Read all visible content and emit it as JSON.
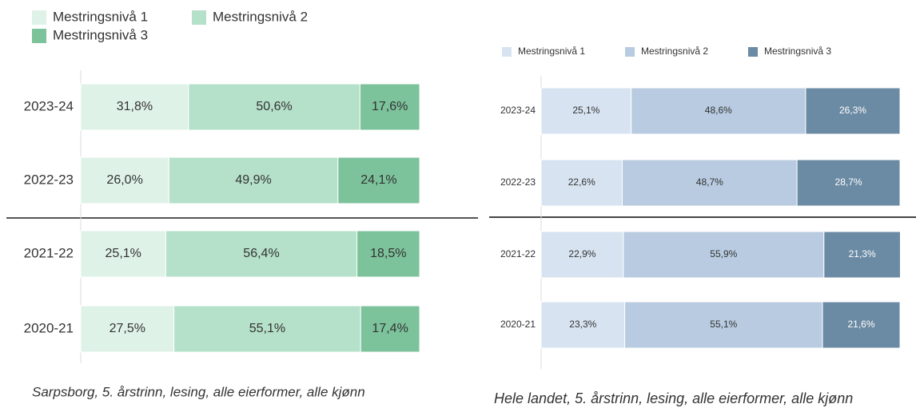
{
  "chart_data": [
    {
      "type": "stacked-bar-horizontal",
      "categories": [
        "2023-24",
        "2022-23",
        "2021-22",
        "2020-21"
      ],
      "series": [
        {
          "name": "Mestringsnivå 1",
          "color": "#dff2e8",
          "values": [
            31.8,
            26.0,
            25.1,
            27.5
          ],
          "value_labels": [
            "31,8%",
            "26,0%",
            "25,1%",
            "27,5%"
          ]
        },
        {
          "name": "Mestringsnivå 2",
          "color": "#b5e0c9",
          "values": [
            50.6,
            49.9,
            56.4,
            55.1
          ],
          "value_labels": [
            "50,6%",
            "49,9%",
            "56,4%",
            "55,1%"
          ]
        },
        {
          "name": "Mestringsnivå 3",
          "color": "#7cc29b",
          "values": [
            17.6,
            24.1,
            18.5,
            17.4
          ],
          "value_labels": [
            "17,6%",
            "24,1%",
            "18,5%",
            "17,4%"
          ]
        }
      ],
      "xlim": [
        0,
        100
      ],
      "caption": "Sarpsborg, 5. årstrinn, lesing, alle eierformer, alle kjønn"
    },
    {
      "type": "stacked-bar-horizontal",
      "categories": [
        "2023-24",
        "2022-23",
        "2021-22",
        "2020-21"
      ],
      "series": [
        {
          "name": "Mestringsnivå 1",
          "color": "#d7e3f0",
          "values": [
            25.1,
            22.6,
            22.9,
            23.3
          ],
          "value_labels": [
            "25,1%",
            "22,6%",
            "22,9%",
            "23,3%"
          ]
        },
        {
          "name": "Mestringsnivå 2",
          "color": "#b8cbe0",
          "values": [
            48.6,
            48.7,
            55.9,
            55.1
          ],
          "value_labels": [
            "48,6%",
            "48,7%",
            "55,9%",
            "55,1%"
          ]
        },
        {
          "name": "Mestringsnivå 3",
          "color": "#6b8aa3",
          "values": [
            26.3,
            28.7,
            21.3,
            21.6
          ],
          "value_labels": [
            "26,3%",
            "28,7%",
            "21,3%",
            "21,6%"
          ]
        }
      ],
      "xlim": [
        0,
        100
      ],
      "caption": "Hele landet, 5. årstrinn, lesing, alle eierformer, alle kjønn"
    }
  ]
}
